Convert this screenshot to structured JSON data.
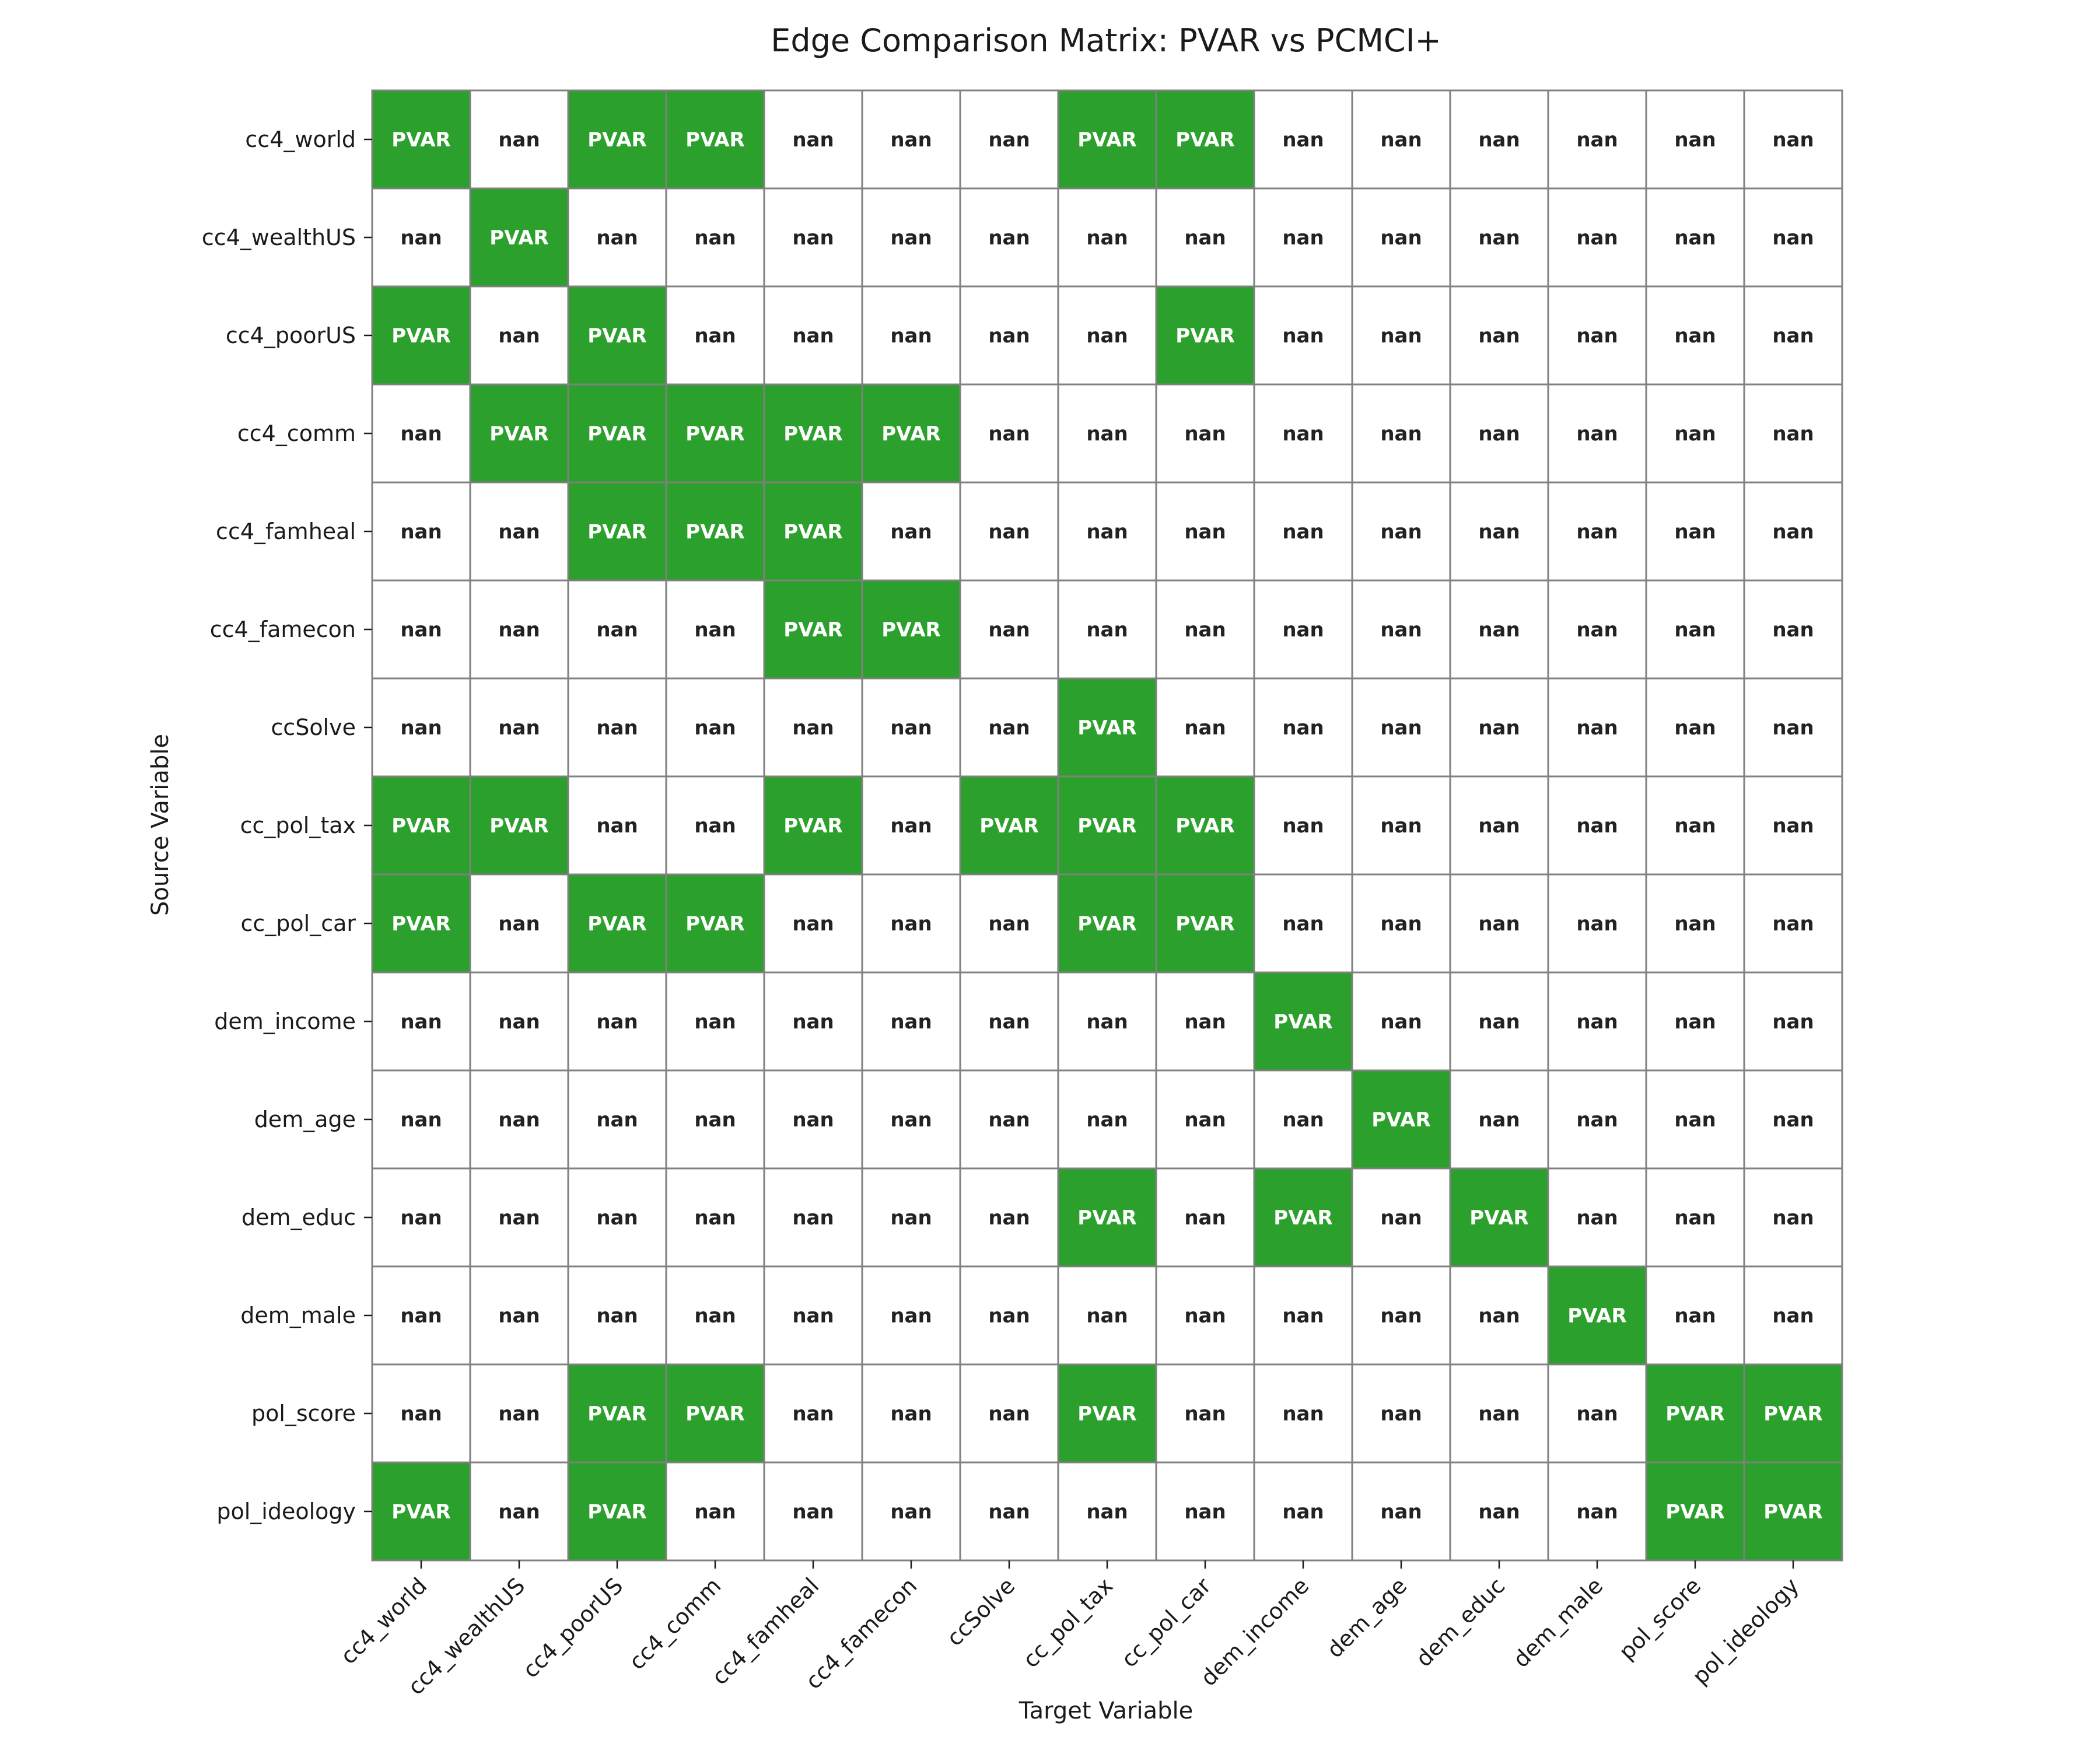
{
  "chart_data": {
    "type": "heatmap",
    "title": "Edge Comparison Matrix: PVAR vs PCMCI+",
    "xlabel": "Target Variable",
    "ylabel": "Source Variable",
    "x_categories": [
      "cc4_world",
      "cc4_wealthUS",
      "cc4_poorUS",
      "cc4_comm",
      "cc4_famheal",
      "cc4_famecon",
      "ccSolve",
      "cc_pol_tax",
      "cc_pol_car",
      "dem_income",
      "dem_age",
      "dem_educ",
      "dem_male",
      "pol_score",
      "pol_ideology"
    ],
    "y_categories": [
      "cc4_world",
      "cc4_wealthUS",
      "cc4_poorUS",
      "cc4_comm",
      "cc4_famheal",
      "cc4_famecon",
      "ccSolve",
      "cc_pol_tax",
      "cc_pol_car",
      "dem_income",
      "dem_age",
      "dem_educ",
      "dem_male",
      "pol_score",
      "pol_ideology"
    ],
    "values": [
      [
        "PVAR",
        "nan",
        "PVAR",
        "PVAR",
        "nan",
        "nan",
        "nan",
        "PVAR",
        "PVAR",
        "nan",
        "nan",
        "nan",
        "nan",
        "nan",
        "nan"
      ],
      [
        "nan",
        "PVAR",
        "nan",
        "nan",
        "nan",
        "nan",
        "nan",
        "nan",
        "nan",
        "nan",
        "nan",
        "nan",
        "nan",
        "nan",
        "nan"
      ],
      [
        "PVAR",
        "nan",
        "PVAR",
        "nan",
        "nan",
        "nan",
        "nan",
        "nan",
        "PVAR",
        "nan",
        "nan",
        "nan",
        "nan",
        "nan",
        "nan"
      ],
      [
        "nan",
        "PVAR",
        "PVAR",
        "PVAR",
        "PVAR",
        "PVAR",
        "nan",
        "nan",
        "nan",
        "nan",
        "nan",
        "nan",
        "nan",
        "nan",
        "nan"
      ],
      [
        "nan",
        "nan",
        "PVAR",
        "PVAR",
        "PVAR",
        "nan",
        "nan",
        "nan",
        "nan",
        "nan",
        "nan",
        "nan",
        "nan",
        "nan",
        "nan"
      ],
      [
        "nan",
        "nan",
        "nan",
        "nan",
        "PVAR",
        "PVAR",
        "nan",
        "nan",
        "nan",
        "nan",
        "nan",
        "nan",
        "nan",
        "nan",
        "nan"
      ],
      [
        "nan",
        "nan",
        "nan",
        "nan",
        "nan",
        "nan",
        "nan",
        "PVAR",
        "nan",
        "nan",
        "nan",
        "nan",
        "nan",
        "nan",
        "nan"
      ],
      [
        "PVAR",
        "PVAR",
        "nan",
        "nan",
        "PVAR",
        "nan",
        "PVAR",
        "PVAR",
        "PVAR",
        "nan",
        "nan",
        "nan",
        "nan",
        "nan",
        "nan"
      ],
      [
        "PVAR",
        "nan",
        "PVAR",
        "PVAR",
        "nan",
        "nan",
        "nan",
        "PVAR",
        "PVAR",
        "nan",
        "nan",
        "nan",
        "nan",
        "nan",
        "nan"
      ],
      [
        "nan",
        "nan",
        "nan",
        "nan",
        "nan",
        "nan",
        "nan",
        "nan",
        "nan",
        "PVAR",
        "nan",
        "nan",
        "nan",
        "nan",
        "nan"
      ],
      [
        "nan",
        "nan",
        "nan",
        "nan",
        "nan",
        "nan",
        "nan",
        "nan",
        "nan",
        "nan",
        "PVAR",
        "nan",
        "nan",
        "nan",
        "nan"
      ],
      [
        "nan",
        "nan",
        "nan",
        "nan",
        "nan",
        "nan",
        "nan",
        "PVAR",
        "nan",
        "PVAR",
        "nan",
        "PVAR",
        "nan",
        "nan",
        "nan"
      ],
      [
        "nan",
        "nan",
        "nan",
        "nan",
        "nan",
        "nan",
        "nan",
        "nan",
        "nan",
        "nan",
        "nan",
        "nan",
        "PVAR",
        "nan",
        "nan"
      ],
      [
        "nan",
        "nan",
        "PVAR",
        "PVAR",
        "nan",
        "nan",
        "nan",
        "PVAR",
        "nan",
        "nan",
        "nan",
        "nan",
        "nan",
        "PVAR",
        "PVAR"
      ],
      [
        "PVAR",
        "nan",
        "PVAR",
        "nan",
        "nan",
        "nan",
        "nan",
        "nan",
        "nan",
        "nan",
        "nan",
        "nan",
        "nan",
        "PVAR",
        "PVAR"
      ]
    ],
    "colors": {
      "PVAR": "#2ca02c",
      "nan": "#ffffff",
      "grid": "#808080",
      "text_on_pvar": "#ffffff",
      "text_on_nan": "#222222"
    },
    "legend": "none"
  }
}
